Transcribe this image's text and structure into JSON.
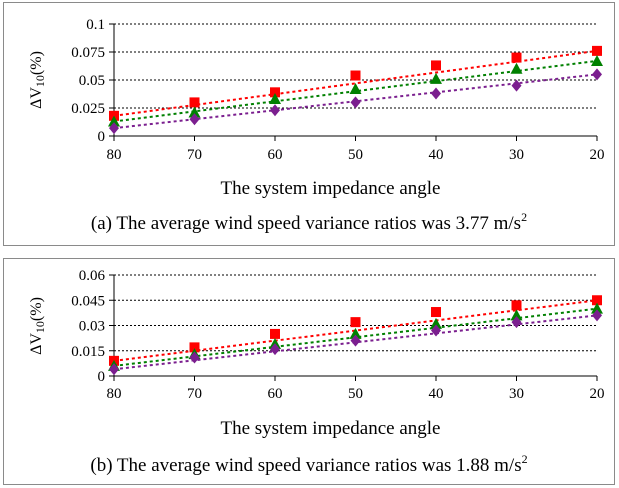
{
  "chart_data": [
    {
      "type": "line",
      "panel": "a",
      "caption": "(a) The average wind speed variance ratios was 3.77 m/s",
      "caption_sup": "2",
      "xlabel": "The system impedance angle",
      "ylabel_prefix": "ΔV",
      "ylabel_sub": "10",
      "ylabel_suffix": "(%)",
      "categories": [
        "80",
        "70",
        "60",
        "50",
        "40",
        "30",
        "20"
      ],
      "y_ticks": [
        "0",
        "0.025",
        "0.05",
        "0.075",
        "0.1"
      ],
      "ylim": [
        0,
        0.1
      ],
      "grid": true,
      "series": [
        {
          "marker": "square",
          "color": "#ff0000",
          "values": [
            0.018,
            0.03,
            0.039,
            0.054,
            0.063,
            0.07,
            0.076
          ]
        },
        {
          "marker": "triangle",
          "color": "#008000",
          "values": [
            0.013,
            0.021,
            0.033,
            0.042,
            0.051,
            0.06,
            0.067
          ]
        },
        {
          "marker": "diamond",
          "color": "#7b1f8f",
          "values": [
            0.007,
            0.015,
            0.023,
            0.03,
            0.038,
            0.045,
            0.055
          ]
        }
      ]
    },
    {
      "type": "line",
      "panel": "b",
      "caption": "(b) The average wind speed variance ratios was 1.88 m/s",
      "caption_sup": "2",
      "xlabel": "The system impedance angle",
      "ylabel_prefix": "ΔV",
      "ylabel_sub": "10",
      "ylabel_suffix": "(%)",
      "categories": [
        "80",
        "70",
        "60",
        "50",
        "40",
        "30",
        "20"
      ],
      "y_ticks": [
        "0",
        "0.015",
        "0.03",
        "0.045",
        "0.06"
      ],
      "ylim": [
        0,
        0.06
      ],
      "grid": true,
      "series": [
        {
          "marker": "square",
          "color": "#ff0000",
          "values": [
            0.009,
            0.017,
            0.025,
            0.032,
            0.038,
            0.042,
            0.045
          ]
        },
        {
          "marker": "triangle",
          "color": "#008000",
          "values": [
            0.006,
            0.013,
            0.019,
            0.025,
            0.031,
            0.036,
            0.04
          ]
        },
        {
          "marker": "diamond",
          "color": "#7b1f8f",
          "values": [
            0.004,
            0.011,
            0.016,
            0.021,
            0.027,
            0.032,
            0.036
          ]
        }
      ]
    }
  ]
}
